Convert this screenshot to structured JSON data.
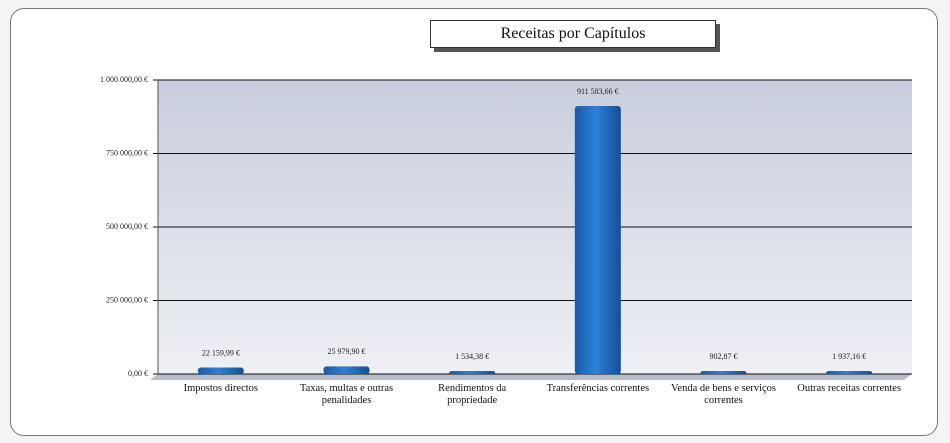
{
  "chart_data": {
    "type": "bar",
    "title": "Receitas por Capítulos",
    "categories": [
      "Impostos directos",
      "Taxas, multas e outras penalidades",
      "Rendimentos da propriedade",
      "Transferências correntes",
      "Venda de bens e serviços correntes",
      "Outras receitas correntes"
    ],
    "values": [
      22159.99,
      25979.9,
      1534.38,
      911583.66,
      902.87,
      1937.16
    ],
    "value_labels": [
      "22 159,99 €",
      "25 979,90 €",
      "1 534,38 €",
      "911 583,66 €",
      "902,87 €",
      "1 937,16 €"
    ],
    "color": "#1f6cc0",
    "ylim": [
      0,
      1000000
    ],
    "yticks": [
      {
        "value": 0,
        "label": "0,00 €"
      },
      {
        "value": 250000,
        "label": "250 000,00 €"
      },
      {
        "value": 500000,
        "label": "500 000,00 €"
      },
      {
        "value": 750000,
        "label": "750 000,00 €"
      },
      {
        "value": 1000000,
        "label": "1 000 000,00 €"
      }
    ],
    "grid": true
  }
}
